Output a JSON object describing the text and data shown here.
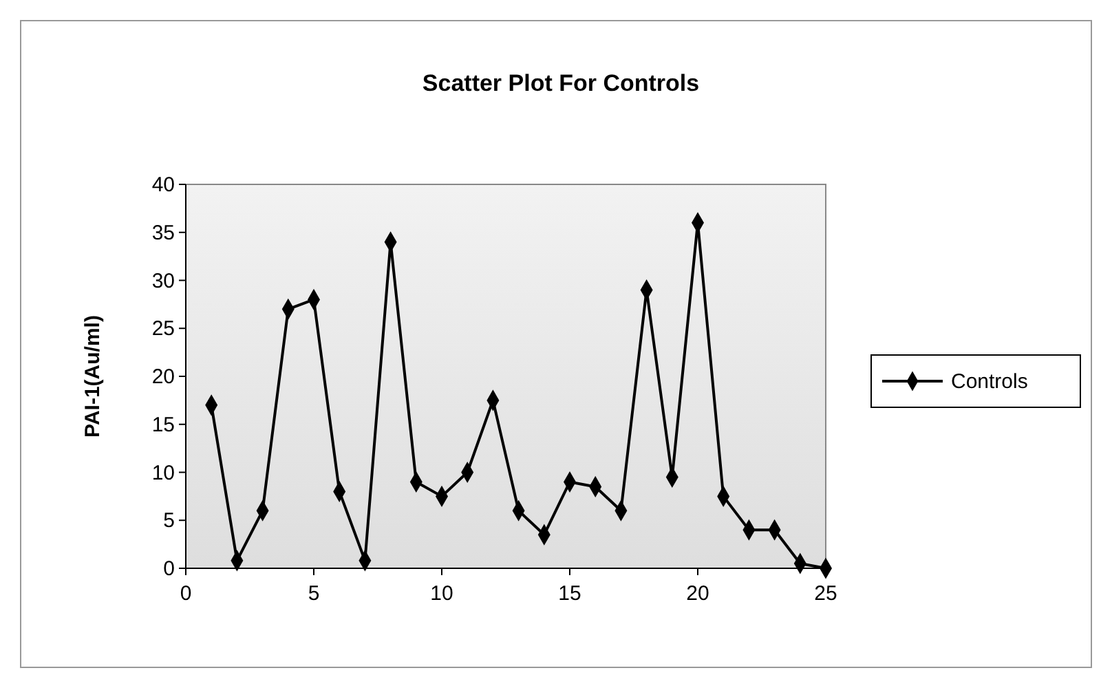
{
  "chart_data": {
    "type": "line",
    "title": "Scatter Plot For Controls",
    "ylabel": "PAI-1(Au/ml)",
    "x": [
      1,
      2,
      3,
      4,
      5,
      6,
      7,
      8,
      9,
      10,
      11,
      12,
      13,
      14,
      15,
      16,
      17,
      18,
      19,
      20,
      21,
      22,
      23,
      24,
      25
    ],
    "series": [
      {
        "name": "Controls",
        "color": "#000000",
        "values": [
          17,
          0.8,
          6,
          27,
          28,
          8,
          0.8,
          34,
          9,
          7.5,
          10,
          17.5,
          6,
          3.5,
          9,
          8.5,
          6,
          29,
          9.5,
          36,
          7.5,
          4,
          4,
          0.5,
          0
        ]
      }
    ],
    "xlim": [
      0,
      25
    ],
    "xticks": [
      0,
      5,
      10,
      15,
      20,
      25
    ],
    "ylim": [
      0,
      40
    ],
    "yticks": [
      0,
      5,
      10,
      15,
      20,
      25,
      30,
      35,
      40
    ],
    "grid": false,
    "legend": "right",
    "marker": "diamond",
    "line_style": "solid"
  }
}
